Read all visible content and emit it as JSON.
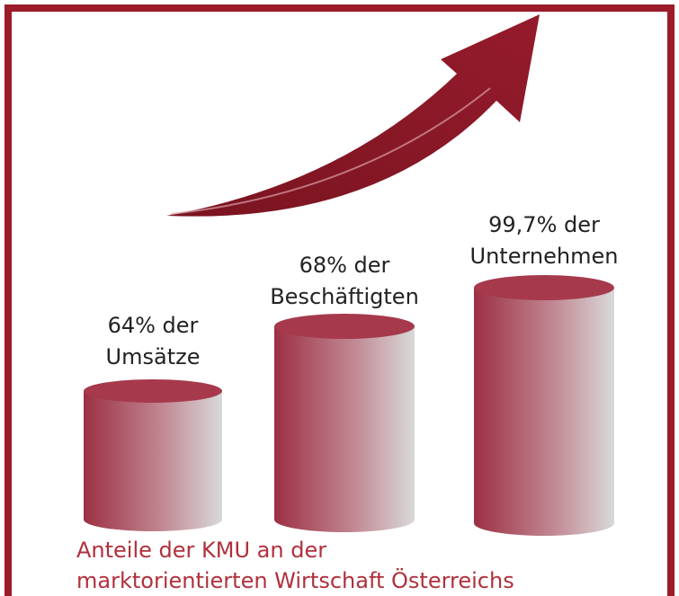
{
  "items": [
    {
      "lines": [
        "64% der",
        "Umsätze"
      ]
    },
    {
      "lines": [
        "68% der",
        "Beschäftigten"
      ]
    },
    {
      "lines": [
        "99,7% der",
        "Unternehmen"
      ]
    }
  ],
  "caption": [
    "Anteile der KMU an der",
    "marktorientierten Wirtschaft Österreichs"
  ]
}
